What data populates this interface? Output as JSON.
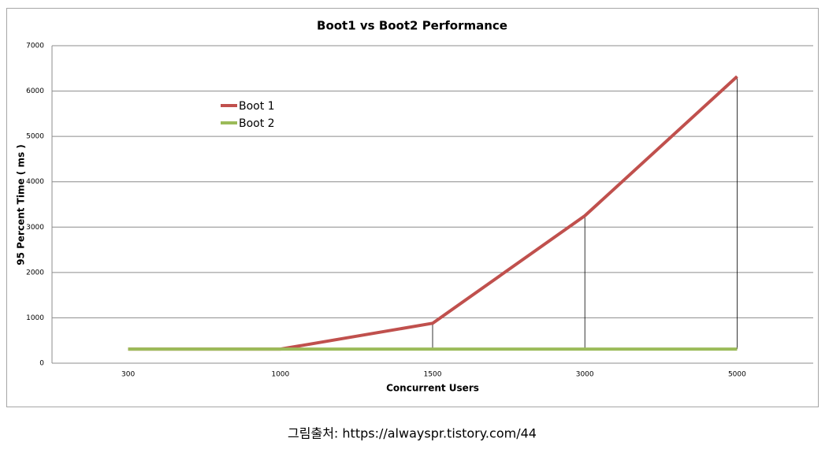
{
  "chart_data": {
    "type": "line",
    "title": "Boot1 vs Boot2 Performance",
    "x_label": "Concurrent Users",
    "y_label": "95 Percent Time ( ms )",
    "categories": [
      "300",
      "1000",
      "1500",
      "3000",
      "5000"
    ],
    "series": [
      {
        "name": "Boot 1",
        "color": "#c0504d",
        "values": [
          310,
          310,
          880,
          3250,
          6320
        ]
      },
      {
        "name": "Boot 2",
        "color": "#9bbb59",
        "values": [
          310,
          310,
          310,
          310,
          310
        ]
      }
    ],
    "ylim": [
      0,
      7000
    ],
    "yticks": [
      0,
      1000,
      2000,
      3000,
      4000,
      5000,
      6000,
      7000
    ],
    "grid": true,
    "drop_lines": true,
    "legend": "upper left"
  },
  "caption": "그림출처: https://alwayspr.tistory.com/44"
}
